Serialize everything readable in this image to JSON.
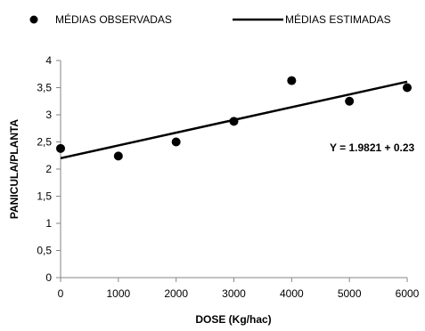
{
  "chart_data": {
    "type": "scatter",
    "xlabel": "DOSE (Kg/hac)",
    "ylabel": "PANICULA/PLANTA",
    "xlim": [
      0,
      6000
    ],
    "ylim": [
      0,
      4
    ],
    "x_ticks": [
      "0",
      "1000",
      "2000",
      "3000",
      "4000",
      "5000",
      "6000"
    ],
    "y_ticks": [
      "0",
      "0,5",
      "1",
      "1,5",
      "2",
      "2,5",
      "3",
      "3,5",
      "4"
    ],
    "legend": {
      "position": "top",
      "entries": [
        "MÉDIAS OBSERVADAS",
        "MÉDIAS ESTIMADAS"
      ]
    },
    "series": [
      {
        "name": "MÉDIAS OBSERVADAS",
        "type": "scatter",
        "x": [
          0,
          1000,
          2000,
          3000,
          4000,
          5000,
          6000
        ],
        "y": [
          2.38,
          2.24,
          2.5,
          2.88,
          3.63,
          3.25,
          3.5
        ]
      },
      {
        "name": "MÉDIAS ESTIMADAS",
        "type": "line",
        "x": [
          0,
          6000
        ],
        "y": [
          2.2,
          3.61
        ]
      }
    ],
    "annotation": "Y = 1.9821 + 0.23",
    "colors": {
      "marker": "#000000",
      "line": "#000000",
      "axis": "#868686"
    }
  }
}
